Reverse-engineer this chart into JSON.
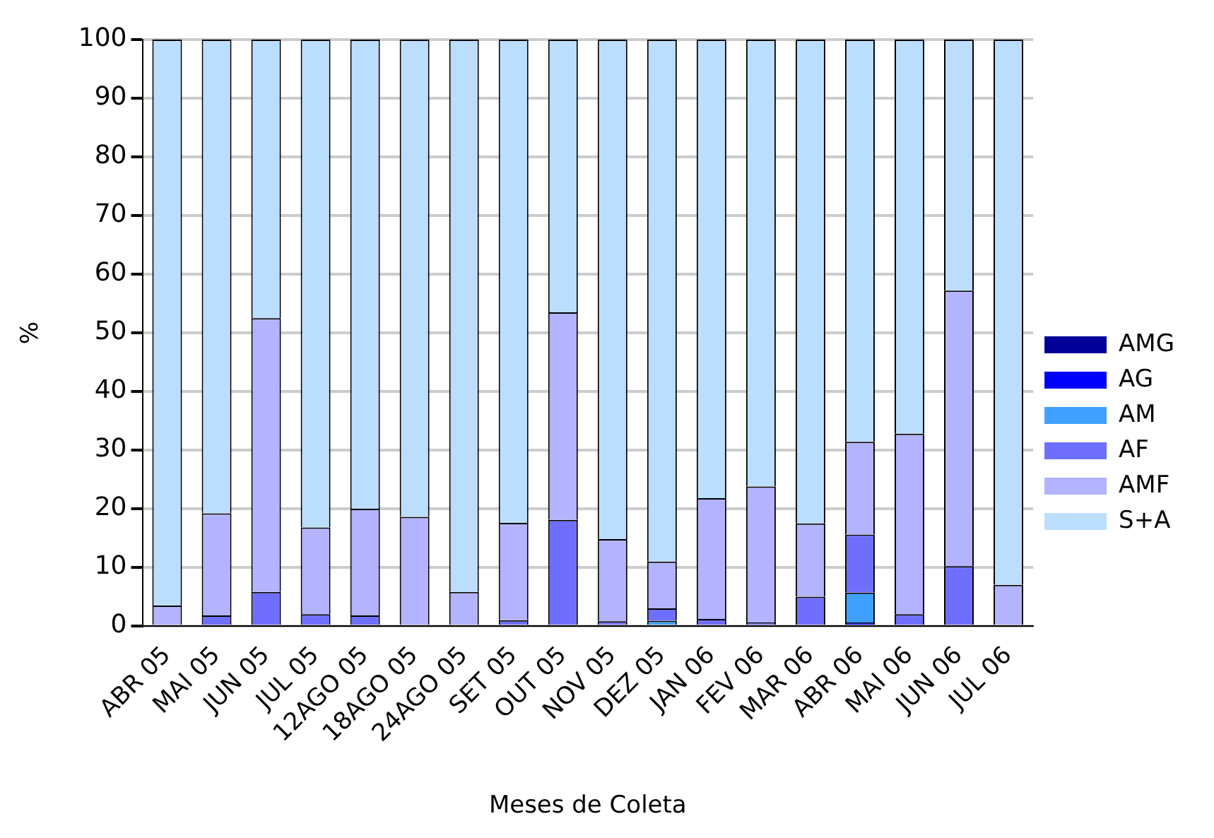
{
  "chart_data": {
    "type": "bar",
    "stacked": true,
    "xlabel": "Meses de Coleta",
    "ylabel": "%",
    "categories": [
      "ABR 05",
      "MAI 05",
      "JUN 05",
      "JUL 05",
      "12AGO 05",
      "18AGO 05",
      "24AGO 05",
      "SET 05",
      "OUT 05",
      "NOV 05",
      "DEZ 05",
      "JAN 06",
      "FEV 06",
      "MAR 06",
      "ABR 06",
      "MAI 06",
      "JUN 06",
      "JUL 06"
    ],
    "series": [
      {
        "name": "AMG",
        "color": "#000099",
        "values": [
          0,
          0,
          0,
          0,
          0,
          0,
          0,
          0,
          0,
          0,
          0,
          0,
          0,
          0,
          0,
          0,
          0,
          0
        ]
      },
      {
        "name": "AG",
        "color": "#0000ff",
        "values": [
          0,
          0,
          0,
          0,
          0,
          0,
          0,
          0,
          0,
          0,
          0,
          0,
          0,
          0,
          0.6,
          0,
          0,
          0
        ]
      },
      {
        "name": "AM",
        "color": "#40a0ff",
        "values": [
          0,
          0,
          0,
          0,
          0,
          0,
          0,
          0,
          0,
          0,
          0.9,
          0,
          0,
          0,
          5.1,
          0,
          0,
          0
        ]
      },
      {
        "name": "AF",
        "color": "#6f6fff",
        "values": [
          0,
          1.8,
          5.8,
          2,
          1.8,
          0,
          0,
          1,
          18.1,
          0.8,
          2.1,
          1.2,
          0.6,
          5,
          9.9,
          2,
          10.2,
          0
        ]
      },
      {
        "name": "AMF",
        "color": "#b3b3ff",
        "values": [
          3.5,
          17.4,
          46.7,
          14.8,
          18.2,
          18.6,
          5.8,
          16.6,
          35.4,
          14,
          8,
          20.6,
          23.2,
          12.5,
          15.8,
          30.8,
          47,
          7
        ]
      },
      {
        "name": "S+A",
        "color": "#bbdeff",
        "values": [
          96.5,
          80.8,
          47.5,
          83.2,
          80,
          81.4,
          94.2,
          82.4,
          46.5,
          85.2,
          89,
          78.2,
          76.2,
          82.5,
          68.6,
          67.2,
          42.8,
          93
        ]
      }
    ],
    "ylim": [
      0,
      100
    ],
    "yticks": [
      0,
      10,
      20,
      30,
      40,
      50,
      60,
      70,
      80,
      90,
      100
    ],
    "grid": "y",
    "legend": "right"
  }
}
